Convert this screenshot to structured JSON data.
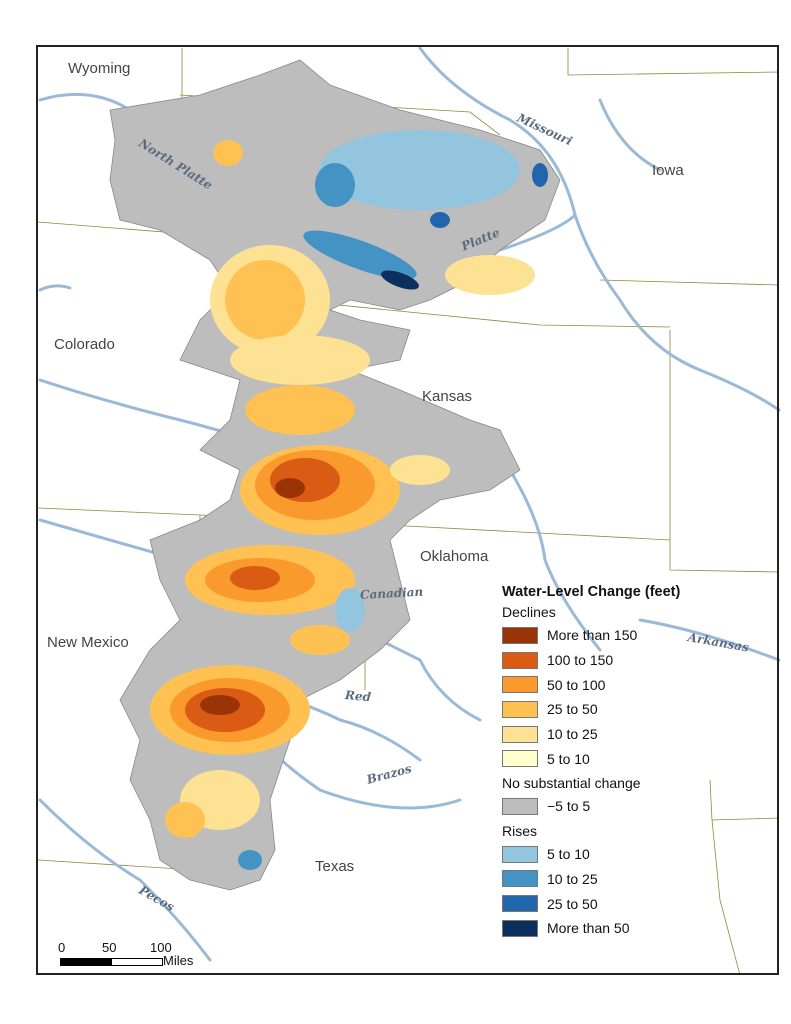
{
  "states": {
    "wyoming": "Wyoming",
    "iowa": "Iowa",
    "colorado": "Colorado",
    "kansas": "Kansas",
    "oklahoma": "Oklahoma",
    "new_mexico": "New Mexico",
    "texas": "Texas"
  },
  "rivers": {
    "north_platte": "North Platte",
    "platte": "Platte",
    "missouri": "Missouri",
    "canadian": "Canadian",
    "arkansas": "Arkansas",
    "red": "Red",
    "brazos": "Brazos",
    "pecos": "Pecos"
  },
  "legend": {
    "title": "Water-Level Change (feet)",
    "declines_label": "Declines",
    "declines": [
      {
        "label": "More than 150",
        "color": "#9a3306"
      },
      {
        "label": "100 to 150",
        "color": "#d95b14"
      },
      {
        "label": "50 to 100",
        "color": "#fb9a2c"
      },
      {
        "label": "25 to 50",
        "color": "#fec152"
      },
      {
        "label": "10 to 25",
        "color": "#fee294"
      },
      {
        "label": "5 to 10",
        "color": "#ffffcc"
      }
    ],
    "nochange_label": "No substantial change",
    "nochange": [
      {
        "label": "−5 to 5",
        "color": "#bdbdbd"
      }
    ],
    "rises_label": "Rises",
    "rises": [
      {
        "label": "5 to 10",
        "color": "#93c5de"
      },
      {
        "label": "10 to 25",
        "color": "#4393c4"
      },
      {
        "label": "25 to 50",
        "color": "#2166ac"
      },
      {
        "label": "More than 50",
        "color": "#0b305e"
      }
    ]
  },
  "scale": {
    "ticks": [
      "0",
      "50",
      "100"
    ],
    "unit": "Miles"
  },
  "colors": {
    "river": "#9ab9d8",
    "border": "#8b8b3c",
    "aquifer": "#bdbdbd"
  }
}
